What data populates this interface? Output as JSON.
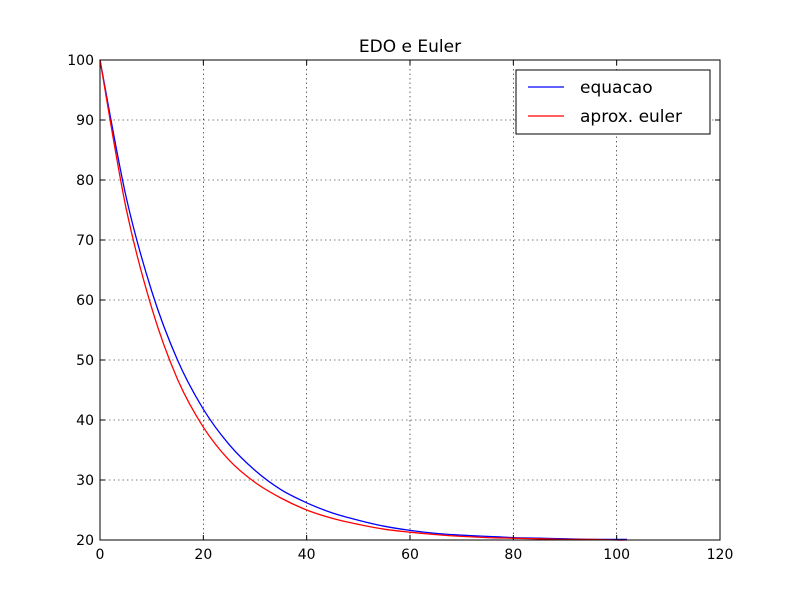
{
  "chart_data": {
    "type": "line",
    "title": "EDO e Euler",
    "xlabel": "",
    "ylabel": "",
    "xlim": [
      0,
      120
    ],
    "ylim": [
      20,
      100
    ],
    "xticks": [
      "0",
      "20",
      "40",
      "60",
      "80",
      "100",
      "120"
    ],
    "yticks": [
      "20",
      "30",
      "40",
      "50",
      "60",
      "70",
      "80",
      "90",
      "100"
    ],
    "grid": true,
    "legend_position": "top-right",
    "series": [
      {
        "name": "equacao",
        "color": "#0000ff",
        "x": [
          0,
          5,
          10,
          15,
          20,
          25,
          30,
          35,
          40,
          45,
          50,
          55,
          60,
          65,
          70,
          75,
          80,
          85,
          90,
          95,
          100,
          102
        ],
        "y": [
          100,
          77.4,
          61.5,
          50.0,
          41.8,
          35.9,
          31.6,
          28.4,
          26.2,
          24.5,
          23.3,
          22.3,
          21.6,
          21.1,
          20.8,
          20.6,
          20.4,
          20.3,
          20.2,
          20.1,
          20.1,
          20.1
        ]
      },
      {
        "name": "aprox. euler",
        "color": "#ff0000",
        "x": [
          0,
          5,
          10,
          15,
          20,
          25,
          30,
          35,
          40,
          45,
          50,
          55,
          60,
          65,
          70,
          75,
          80,
          85,
          90,
          95,
          100,
          102
        ],
        "y": [
          100,
          75.5,
          58.7,
          46.8,
          38.8,
          33.3,
          29.6,
          27.0,
          25.0,
          23.6,
          22.6,
          21.8,
          21.3,
          20.9,
          20.6,
          20.4,
          20.3,
          20.2,
          20.1,
          20.1,
          20.0,
          20.0
        ]
      }
    ]
  }
}
